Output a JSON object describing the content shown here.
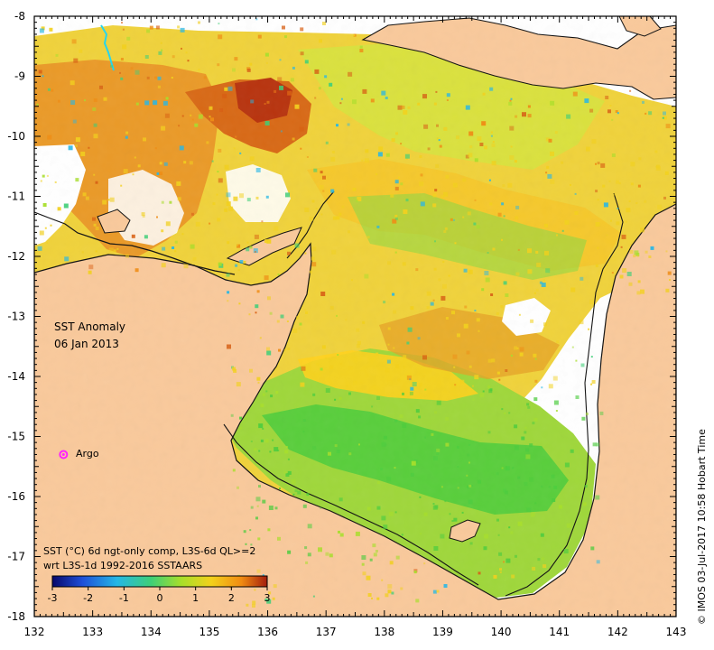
{
  "title_lines": [
    "SST Anomaly",
    "06 Jan 2013"
  ],
  "caption_lines": [
    "SST (°C) 6d ngt-only comp, L3S-6d QL>=2",
    "wrt L3S-1d 1992-2016 SSTAARS"
  ],
  "colorbar": {
    "min": -3,
    "max": 3,
    "ticks": [
      -3,
      -2,
      -1,
      0,
      1,
      2,
      3
    ],
    "colors": [
      "#08086b",
      "#1f4fd8",
      "#25b7e6",
      "#3ecf77",
      "#a8df2a",
      "#f3d11b",
      "#f08b12",
      "#a31d0d"
    ]
  },
  "axes": {
    "x_ticks": [
      132,
      133,
      134,
      135,
      136,
      137,
      138,
      139,
      140,
      141,
      142,
      143
    ],
    "y_ticks": [
      -8,
      -9,
      -10,
      -11,
      -12,
      -13,
      -14,
      -15,
      -16,
      -17,
      -18
    ]
  },
  "argo": {
    "label": "Argo",
    "lon": 132.5,
    "lat": -15.3,
    "color": "#ff22ff"
  },
  "credit": "© IMOS 03-Jul-2017 10:58 Hobart Time",
  "colors": {
    "land": "#f9c99b",
    "frame": "#000000",
    "background": "#ffffff"
  }
}
